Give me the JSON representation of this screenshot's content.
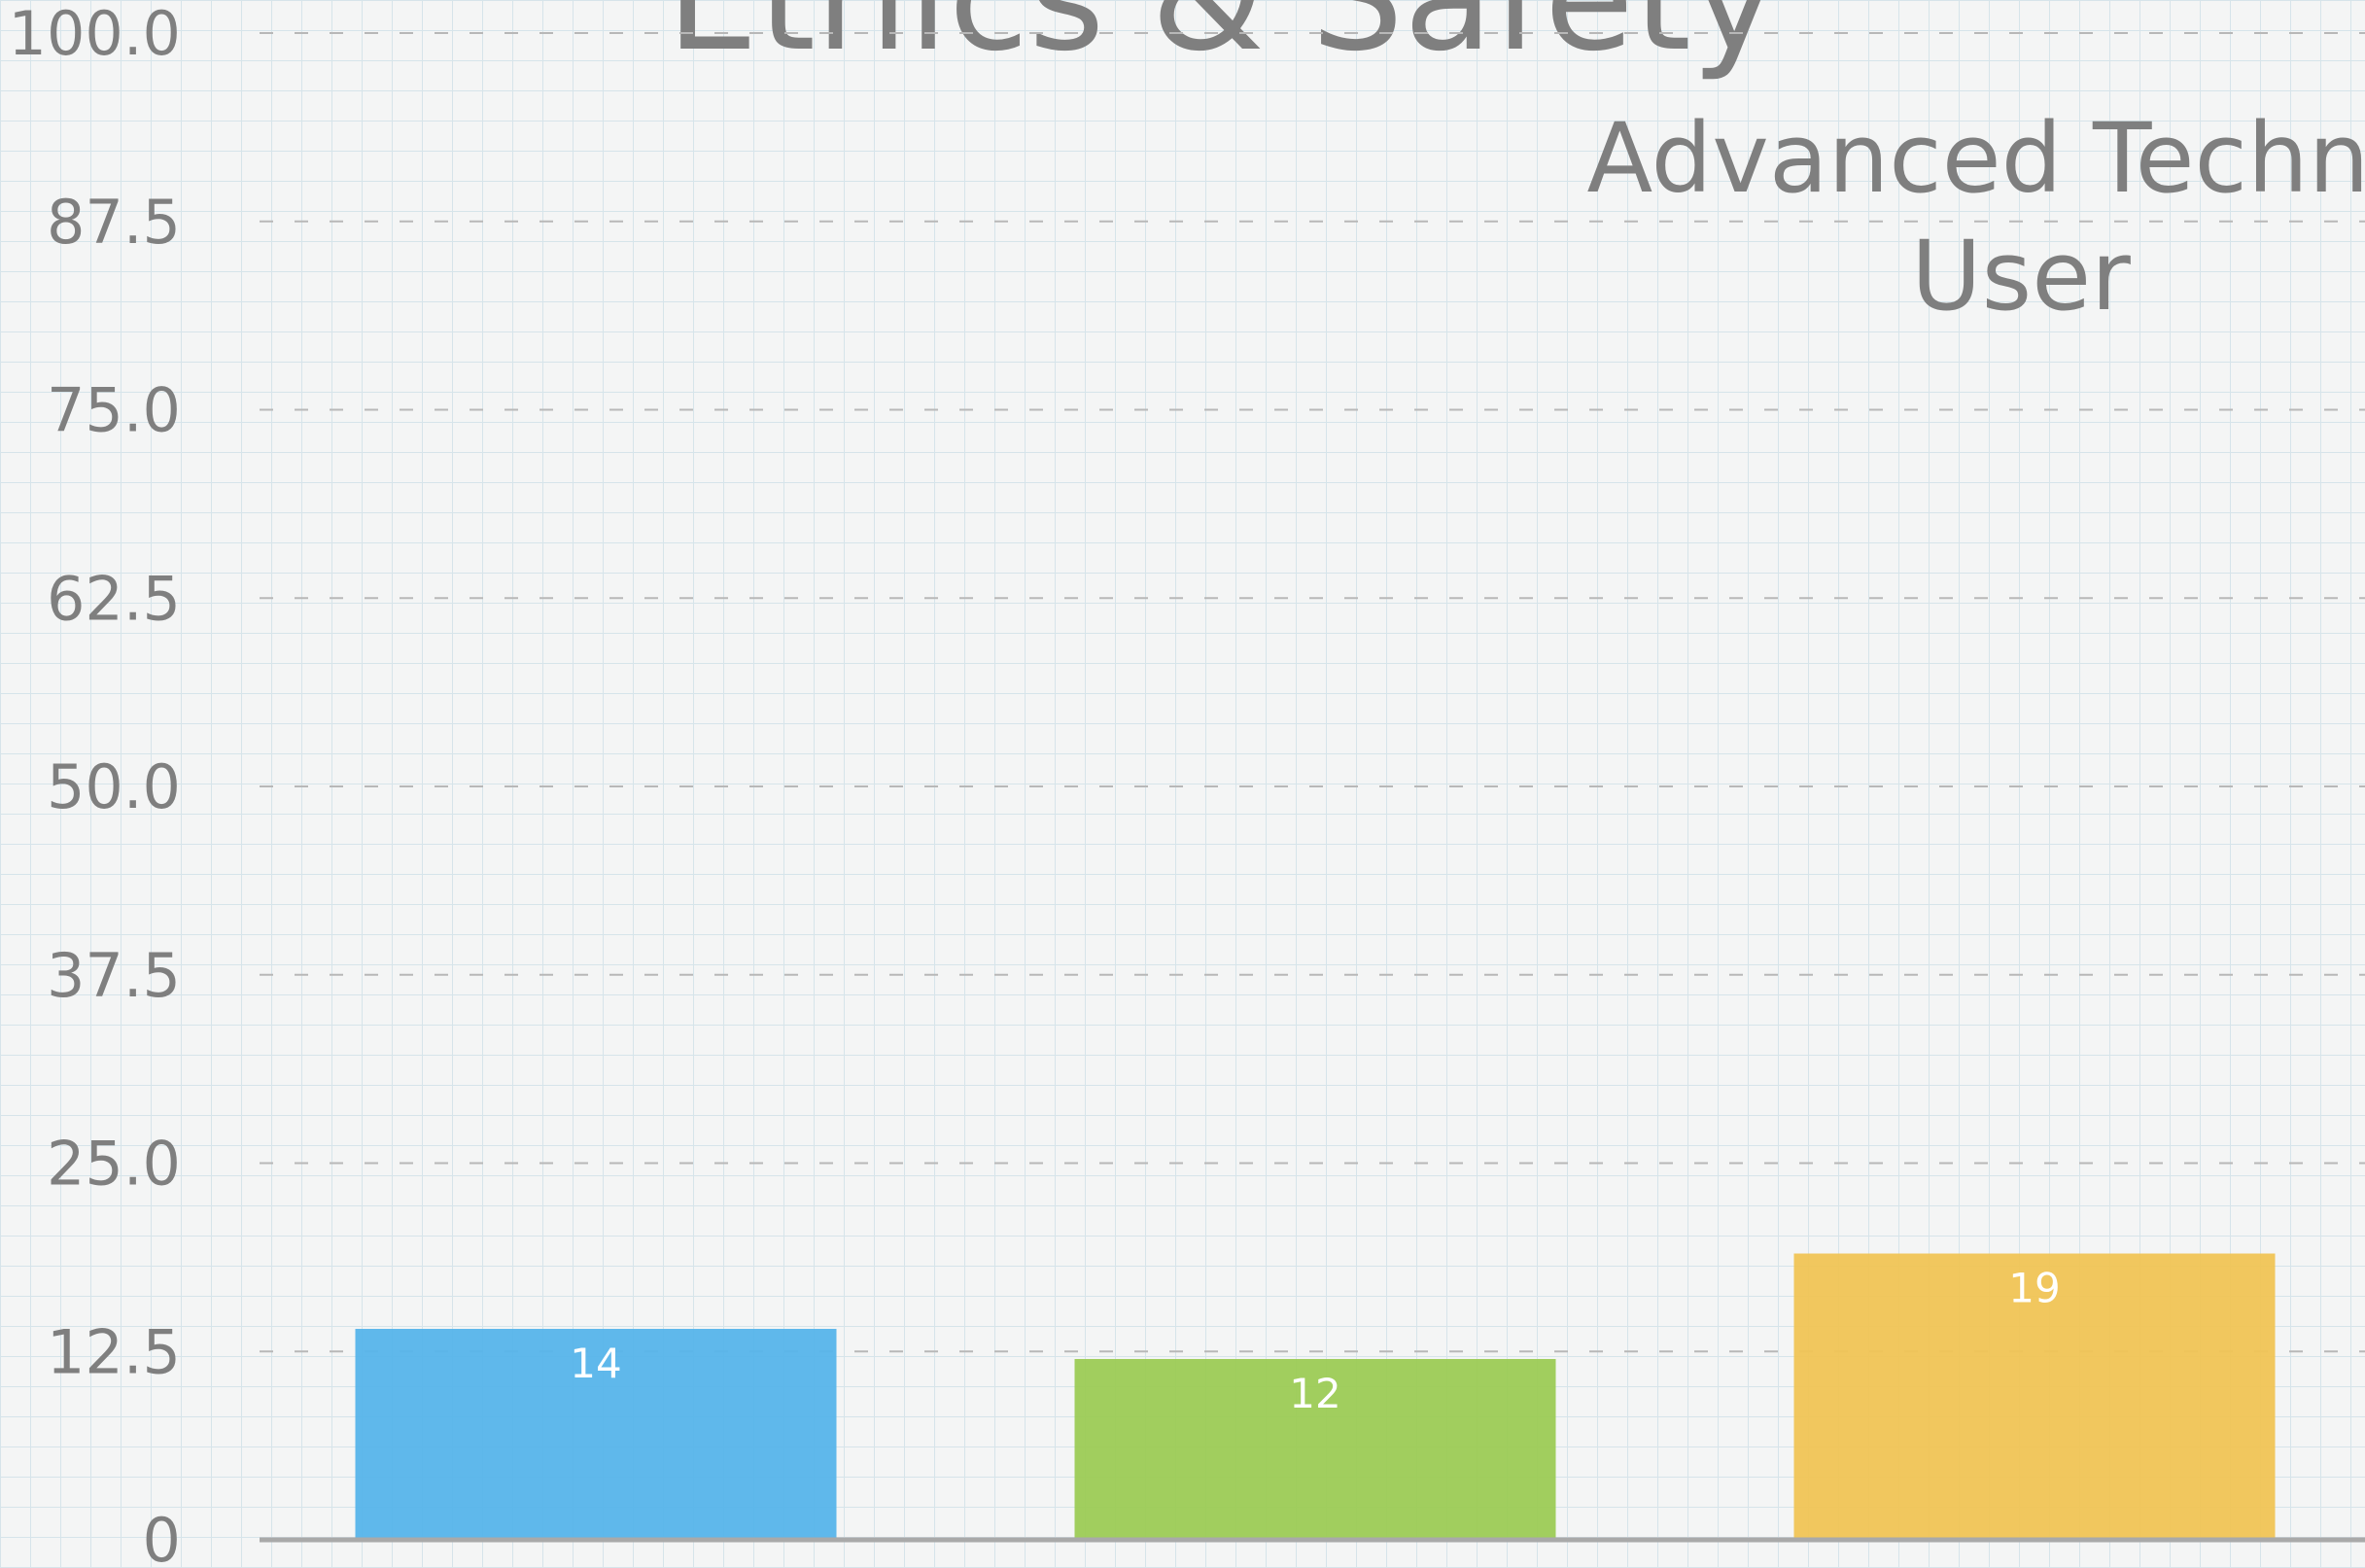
{
  "chart_data": {
    "type": "bar",
    "title": "Ethics & Safety",
    "subtitle": [
      "Advanced Technol",
      "User"
    ],
    "categories": [
      null,
      null,
      null
    ],
    "values": [
      14,
      12,
      19
    ],
    "colors": [
      "#56b4ea",
      "#9ccb55",
      "#f0c455"
    ],
    "ylim": [
      0,
      100
    ],
    "yticks": [
      0,
      12.5,
      {
        "value": 25,
        "label": "25.0"
      },
      37.5,
      {
        "value": 50,
        "label": "50.0"
      },
      62.5,
      {
        "value": 75,
        "label": "75.0"
      },
      87.5,
      {
        "value": 100,
        "label": "100.0"
      }
    ],
    "grid": true
  }
}
